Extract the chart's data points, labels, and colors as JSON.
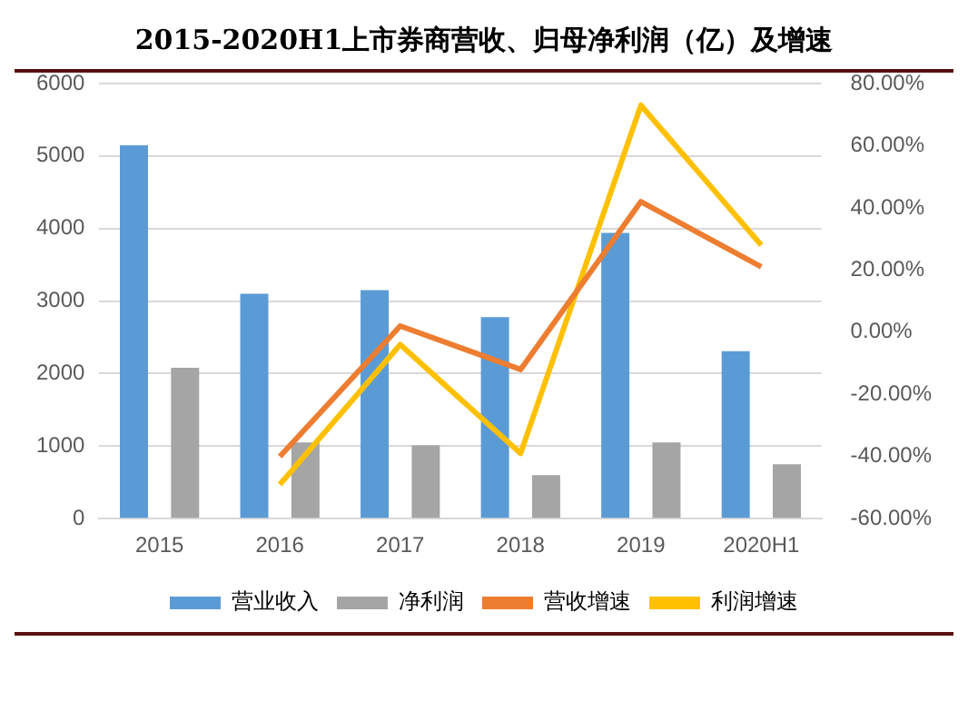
{
  "chart_data": {
    "type": "bar",
    "title": "2015-2020H1上市券商营收、归母净利润（亿）及增速",
    "categories": [
      "2015",
      "2016",
      "2017",
      "2018",
      "2019",
      "2020H1"
    ],
    "series": [
      {
        "name": "营业收入",
        "color": "#5b9bd5",
        "values": [
          5150,
          3100,
          3150,
          2780,
          3940,
          2310
        ]
      },
      {
        "name": "净利润",
        "color": "#a5a5a5",
        "values": [
          2080,
          1050,
          1010,
          600,
          1050,
          750
        ]
      },
      {
        "name": "营收增速",
        "type": "line",
        "axis": "y2",
        "color": "#ed7d31",
        "values": [
          null,
          -40,
          2,
          -12,
          42,
          21
        ]
      },
      {
        "name": "利润增速",
        "type": "line",
        "axis": "y2",
        "color": "#ffc000",
        "values": [
          null,
          -49,
          -4,
          -39,
          73,
          28
        ]
      }
    ],
    "ylim": [
      0,
      6000
    ],
    "yticks": [
      0,
      1000,
      2000,
      3000,
      4000,
      5000,
      6000
    ],
    "y2lim": [
      -60,
      80
    ],
    "y2ticks": [
      {
        "value": -60,
        "label": "-60.00%"
      },
      {
        "value": -40,
        "label": "-40.00%"
      },
      {
        "value": -20,
        "label": "-20.00%"
      },
      {
        "value": 0,
        "label": "0.00%"
      },
      {
        "value": 20,
        "label": "20.00%"
      },
      {
        "value": 40,
        "label": "40.00%"
      },
      {
        "value": 60,
        "label": "60.00%"
      },
      {
        "value": 80,
        "label": "80.00%"
      }
    ],
    "grid": "y",
    "legend": "bottom",
    "marker": "none"
  }
}
